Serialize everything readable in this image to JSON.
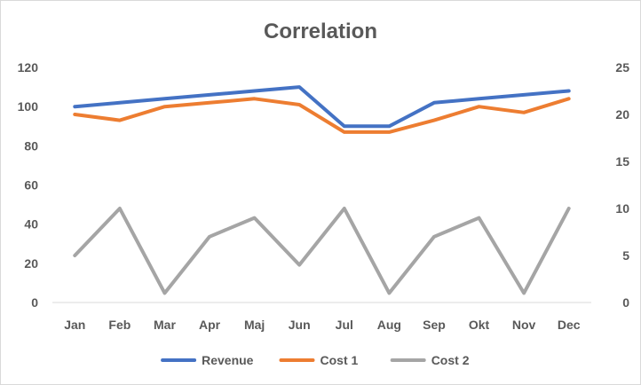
{
  "chart_data": {
    "type": "line",
    "title": "Correlation",
    "categories": [
      "Jan",
      "Feb",
      "Mar",
      "Apr",
      "Maj",
      "Jun",
      "Jul",
      "Aug",
      "Sep",
      "Okt",
      "Nov",
      "Dec"
    ],
    "y_left": {
      "min": 0,
      "max": 120,
      "ticks": [
        0,
        20,
        40,
        60,
        80,
        100,
        120
      ]
    },
    "y_right": {
      "min": 0,
      "max": 25,
      "ticks": [
        0,
        5,
        10,
        15,
        20,
        25
      ]
    },
    "grid": false,
    "legend_position": "bottom",
    "series": [
      {
        "name": "Revenue",
        "axis": "left",
        "color": "#4472C4",
        "values": [
          100,
          102,
          104,
          106,
          108,
          110,
          90,
          90,
          102,
          104,
          106,
          108
        ]
      },
      {
        "name": "Cost 1",
        "axis": "left",
        "color": "#ED7D31",
        "values": [
          96,
          93,
          100,
          102,
          104,
          101,
          87,
          87,
          93,
          100,
          97,
          104
        ]
      },
      {
        "name": "Cost 2",
        "axis": "right",
        "color": "#A5A5A5",
        "values": [
          5,
          10,
          1,
          7,
          9,
          4,
          10,
          1,
          7,
          9,
          1,
          10
        ]
      }
    ]
  }
}
